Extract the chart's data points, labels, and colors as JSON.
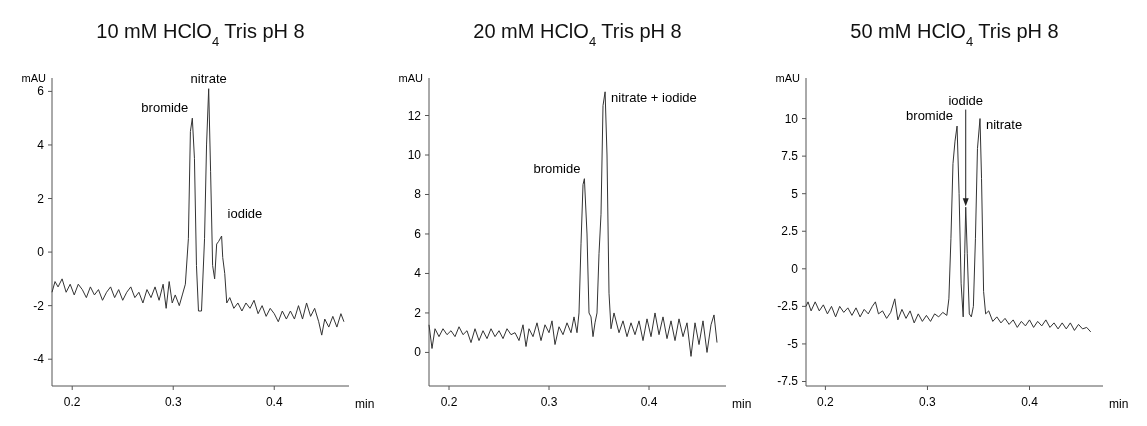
{
  "chart_data": [
    {
      "type": "line",
      "title": "10 mM HClO$_{4}$ Tris pH 8",
      "xlabel": "min",
      "ylabel": "mAU",
      "xlim": [
        0.18,
        0.474
      ],
      "ylim": [
        -5,
        6.5
      ],
      "xticks": [
        0.2,
        0.3,
        0.4
      ],
      "yticks": [
        -4,
        -2,
        0,
        2,
        4,
        6
      ],
      "grid": false,
      "annotations": [
        {
          "text": "bromide",
          "x": 0.3189,
          "y": 5.0
        },
        {
          "text": "nitrate",
          "x": 0.3351,
          "y": 6.1
        },
        {
          "text": "iodide",
          "x": 0.3479,
          "y": 0.6
        }
      ],
      "series": [
        {
          "color": "#333333",
          "x": [
            0.18,
            0.183,
            0.186,
            0.19,
            0.194,
            0.198,
            0.202,
            0.206,
            0.21,
            0.214,
            0.218,
            0.222,
            0.226,
            0.23,
            0.234,
            0.238,
            0.242,
            0.246,
            0.25,
            0.254,
            0.258,
            0.262,
            0.266,
            0.27,
            0.274,
            0.278,
            0.282,
            0.286,
            0.29,
            0.293,
            0.296,
            0.299,
            0.302,
            0.306,
            0.309,
            0.312,
            0.315,
            0.317,
            0.3189,
            0.321,
            0.323,
            0.325,
            0.328,
            0.331,
            0.333,
            0.3351,
            0.337,
            0.339,
            0.341,
            0.343,
            0.345,
            0.3479,
            0.349,
            0.351,
            0.353,
            0.356,
            0.36,
            0.364,
            0.368,
            0.372,
            0.376,
            0.38,
            0.384,
            0.388,
            0.392,
            0.396,
            0.4,
            0.404,
            0.408,
            0.412,
            0.416,
            0.42,
            0.424,
            0.428,
            0.432,
            0.436,
            0.44,
            0.444,
            0.447,
            0.45,
            0.454,
            0.458,
            0.462,
            0.466,
            0.469
          ],
          "values": [
            -1.5,
            -1.1,
            -1.3,
            -1.0,
            -1.5,
            -1.2,
            -1.6,
            -1.2,
            -1.4,
            -1.7,
            -1.3,
            -1.6,
            -1.4,
            -1.8,
            -1.5,
            -1.3,
            -1.7,
            -1.4,
            -1.8,
            -1.5,
            -1.3,
            -1.7,
            -1.5,
            -1.9,
            -1.4,
            -1.7,
            -1.3,
            -1.8,
            -1.2,
            -2.1,
            -1.1,
            -1.9,
            -1.6,
            -2.0,
            -1.6,
            -1.2,
            0.5,
            4.5,
            5.0,
            3.5,
            -0.5,
            -2.2,
            -2.2,
            0.5,
            4.0,
            6.1,
            3.0,
            -0.5,
            -1.0,
            0.3,
            0.4,
            0.6,
            -0.2,
            -0.8,
            -1.9,
            -1.7,
            -2.1,
            -1.9,
            -2.2,
            -1.9,
            -2.1,
            -1.8,
            -2.3,
            -2.0,
            -2.4,
            -2.1,
            -2.3,
            -2.6,
            -2.2,
            -2.5,
            -2.2,
            -2.5,
            -2.0,
            -2.5,
            -1.9,
            -2.4,
            -2.1,
            -2.6,
            -3.1,
            -2.5,
            -2.8,
            -2.4,
            -2.8,
            -2.3,
            -2.6
          ]
        }
      ]
    },
    {
      "type": "line",
      "title": "20 mM HClO$_{4}$ Tris pH 8",
      "xlabel": "min",
      "ylabel": "mAU",
      "xlim": [
        0.18,
        0.477
      ],
      "ylim": [
        -1.7,
        13.9
      ],
      "xticks": [
        0.2,
        0.3,
        0.4
      ],
      "yticks": [
        0,
        2,
        4,
        6,
        8,
        10,
        12
      ],
      "grid": false,
      "annotations": [
        {
          "text": "bromide",
          "x": 0.3354,
          "y": 8.8
        },
        {
          "text": "nitrate + iodide",
          "x": 0.3561,
          "y": 13.2
        }
      ],
      "series": [
        {
          "color": "#333333",
          "x": [
            0.18,
            0.183,
            0.186,
            0.19,
            0.194,
            0.198,
            0.202,
            0.206,
            0.21,
            0.214,
            0.218,
            0.222,
            0.226,
            0.23,
            0.234,
            0.238,
            0.242,
            0.246,
            0.25,
            0.254,
            0.258,
            0.262,
            0.266,
            0.27,
            0.274,
            0.277,
            0.28,
            0.284,
            0.288,
            0.292,
            0.296,
            0.3,
            0.303,
            0.306,
            0.31,
            0.314,
            0.318,
            0.322,
            0.325,
            0.328,
            0.33,
            0.332,
            0.334,
            0.3354,
            0.338,
            0.34,
            0.342,
            0.344,
            0.346,
            0.348,
            0.35,
            0.352,
            0.354,
            0.3561,
            0.358,
            0.36,
            0.362,
            0.365,
            0.37,
            0.374,
            0.378,
            0.382,
            0.386,
            0.39,
            0.394,
            0.398,
            0.402,
            0.406,
            0.41,
            0.414,
            0.418,
            0.422,
            0.426,
            0.43,
            0.434,
            0.438,
            0.442,
            0.446,
            0.45,
            0.454,
            0.458,
            0.462,
            0.465,
            0.468
          ],
          "values": [
            1.4,
            0.2,
            1.2,
            0.8,
            1.2,
            0.9,
            1.1,
            0.8,
            1.3,
            0.9,
            1.1,
            0.5,
            1.2,
            0.6,
            1.1,
            0.7,
            1.2,
            0.8,
            1.1,
            0.7,
            1.2,
            0.9,
            1.0,
            0.6,
            1.4,
            0.3,
            1.2,
            0.8,
            1.5,
            0.6,
            1.4,
            1.0,
            1.6,
            0.4,
            1.3,
            0.9,
            1.5,
            1.0,
            1.8,
            1.0,
            2.0,
            5.5,
            8.5,
            8.8,
            6.0,
            2.0,
            1.8,
            0.8,
            1.5,
            2.0,
            5.0,
            7.0,
            12.5,
            13.2,
            10.0,
            3.0,
            1.2,
            2.0,
            1.0,
            1.6,
            0.8,
            1.5,
            0.9,
            1.6,
            0.6,
            1.7,
            0.8,
            2.0,
            0.9,
            1.8,
            0.7,
            1.6,
            0.6,
            1.7,
            0.8,
            1.5,
            -0.2,
            1.5,
            0.4,
            1.6,
            0.0,
            1.4,
            1.9,
            0.5
          ]
        }
      ]
    },
    {
      "type": "line",
      "title": "50 mM HClO$_{4}$ Tris pH 8",
      "xlabel": "min",
      "ylabel": "mAU",
      "xlim": [
        0.181,
        0.472
      ],
      "ylim": [
        -7.8,
        12.7
      ],
      "xticks": [
        0.2,
        0.3,
        0.4
      ],
      "yticks": [
        -7.5,
        -5,
        -2.5,
        0,
        2.5,
        5,
        7.5,
        10
      ],
      "grid": false,
      "annotations": [
        {
          "text": "bromide",
          "x": 0.329,
          "y": 9.5
        },
        {
          "text": "iodide",
          "x": 0.3375,
          "y": 4.1
        },
        {
          "text": "nitrate",
          "x": 0.3515,
          "y": 10.0
        }
      ],
      "series": [
        {
          "color": "#333333",
          "x": [
            0.181,
            0.183,
            0.186,
            0.19,
            0.194,
            0.198,
            0.202,
            0.206,
            0.21,
            0.214,
            0.218,
            0.222,
            0.226,
            0.23,
            0.234,
            0.238,
            0.242,
            0.246,
            0.249,
            0.252,
            0.256,
            0.26,
            0.264,
            0.268,
            0.271,
            0.275,
            0.279,
            0.283,
            0.287,
            0.291,
            0.295,
            0.299,
            0.303,
            0.307,
            0.311,
            0.315,
            0.319,
            0.321,
            0.323,
            0.325,
            0.327,
            0.329,
            0.331,
            0.333,
            0.335,
            0.3365,
            0.3375,
            0.339,
            0.341,
            0.343,
            0.345,
            0.347,
            0.349,
            0.3515,
            0.353,
            0.355,
            0.357,
            0.36,
            0.364,
            0.368,
            0.372,
            0.376,
            0.38,
            0.384,
            0.388,
            0.392,
            0.396,
            0.4,
            0.404,
            0.408,
            0.412,
            0.416,
            0.42,
            0.424,
            0.428,
            0.432,
            0.436,
            0.44,
            0.444,
            0.448,
            0.452,
            0.456,
            0.46
          ],
          "values": [
            -2.5,
            -2.2,
            -2.8,
            -2.2,
            -2.8,
            -2.4,
            -3.0,
            -2.5,
            -3.2,
            -2.5,
            -2.9,
            -2.6,
            -3.1,
            -2.6,
            -3.2,
            -2.7,
            -3.0,
            -2.5,
            -2.2,
            -3.0,
            -2.8,
            -3.3,
            -2.9,
            -2.0,
            -3.4,
            -2.7,
            -3.3,
            -2.8,
            -3.6,
            -3.0,
            -3.5,
            -3.1,
            -3.5,
            -3.0,
            -3.2,
            -2.9,
            -3.1,
            -2.0,
            2.0,
            7.0,
            8.5,
            9.5,
            5.0,
            -1.0,
            -3.2,
            1.0,
            4.1,
            1.0,
            -3.0,
            -3.2,
            -2.5,
            2.0,
            8.0,
            10.0,
            6.0,
            -1.5,
            -3.0,
            -2.8,
            -3.5,
            -3.2,
            -3.6,
            -3.3,
            -3.7,
            -3.4,
            -3.9,
            -3.5,
            -3.8,
            -3.4,
            -3.9,
            -3.5,
            -3.8,
            -3.4,
            -3.9,
            -3.6,
            -4.0,
            -3.6,
            -4.0,
            -3.6,
            -4.1,
            -3.7,
            -4.0,
            -3.9,
            -4.2
          ]
        }
      ]
    }
  ]
}
